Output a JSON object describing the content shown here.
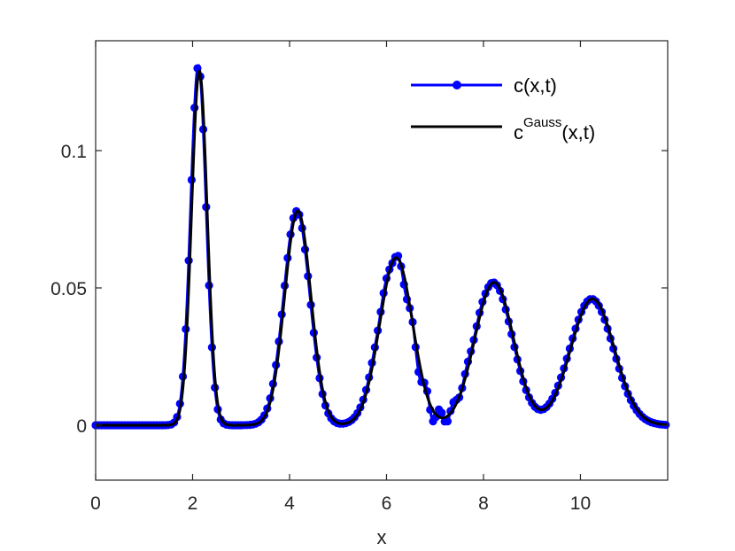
{
  "chart_data": {
    "type": "line",
    "xlabel": "x",
    "ylabel": "",
    "xlim": [
      0,
      11.8
    ],
    "ylim": [
      -0.02,
      0.14
    ],
    "x_ticks": [
      0,
      2,
      4,
      6,
      8,
      10
    ],
    "x_tick_labels": [
      "0",
      "2",
      "4",
      "6",
      "8",
      "10"
    ],
    "y_ticks": [
      0,
      0.05,
      0.1
    ],
    "y_tick_labels": [
      "0",
      "0.05",
      "0.1"
    ],
    "grid": false,
    "legend_position": "top-right",
    "legend": {
      "c_main": "c(x,t)",
      "gauss_base": "c",
      "gauss_sup": "Gauss",
      "gauss_tail": "(x,t)"
    },
    "series": [
      {
        "name": "c(x,t)",
        "color": "#0000ff",
        "style": "line-with-dot-markers",
        "pulses": [
          {
            "center": 2.12,
            "peak": 0.131,
            "width": 0.16
          },
          {
            "center": 4.15,
            "peak": 0.078,
            "width": 0.27
          },
          {
            "center": 6.18,
            "peak": 0.061,
            "width": 0.34
          },
          {
            "center": 8.2,
            "peak": 0.052,
            "width": 0.4
          },
          {
            "center": 10.23,
            "peak": 0.046,
            "width": 0.45
          }
        ],
        "oscillation": {
          "range": [
            5.6,
            8.1
          ],
          "amplitude": 0.0035
        },
        "marker_spacing": 0.06
      },
      {
        "name": "c^Gauss(x,t)",
        "color": "#000000",
        "style": "line",
        "pulses": [
          {
            "center": 2.14,
            "peak": 0.129,
            "width": 0.16
          },
          {
            "center": 4.17,
            "peak": 0.078,
            "width": 0.27
          },
          {
            "center": 6.2,
            "peak": 0.061,
            "width": 0.34
          },
          {
            "center": 8.22,
            "peak": 0.052,
            "width": 0.4
          },
          {
            "center": 10.25,
            "peak": 0.046,
            "width": 0.45
          }
        ]
      }
    ]
  }
}
